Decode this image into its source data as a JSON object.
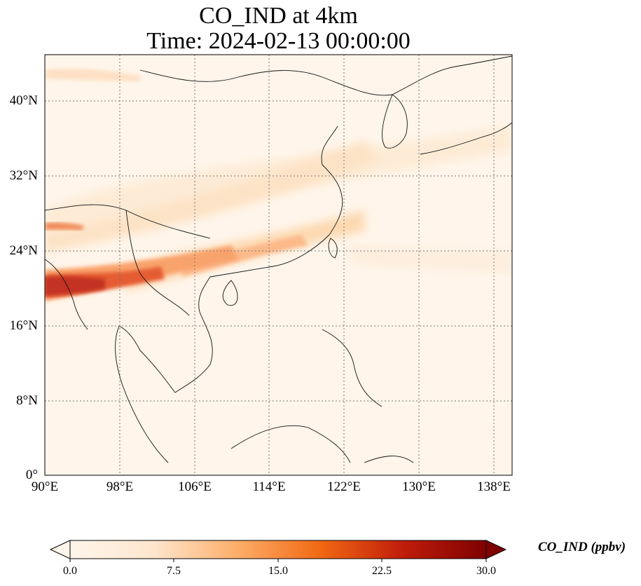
{
  "title": {
    "line1": "CO_IND at 4km",
    "line2": "Time: 2024-02-13 00:00:00"
  },
  "map": {
    "lon_range": [
      90,
      140
    ],
    "lat_range": [
      0,
      45
    ],
    "gridlines": "dotted",
    "lat_ticks": [
      "40°N",
      "32°N",
      "24°N",
      "16°N",
      "8°N",
      "0°"
    ],
    "lon_ticks": [
      "90°E",
      "98°E",
      "106°E",
      "114°E",
      "122°E",
      "130°E",
      "138°E"
    ]
  },
  "colorbar": {
    "label": "CO_IND (ppbv)",
    "ticks": [
      "0.0",
      "7.5",
      "15.0",
      "22.5",
      "30.0"
    ],
    "min": 0,
    "max": 30,
    "cmap": [
      "#fff5eb",
      "#fdd9b0",
      "#fdae6b",
      "#f16913",
      "#c23a0c",
      "#7f0000"
    ]
  }
}
